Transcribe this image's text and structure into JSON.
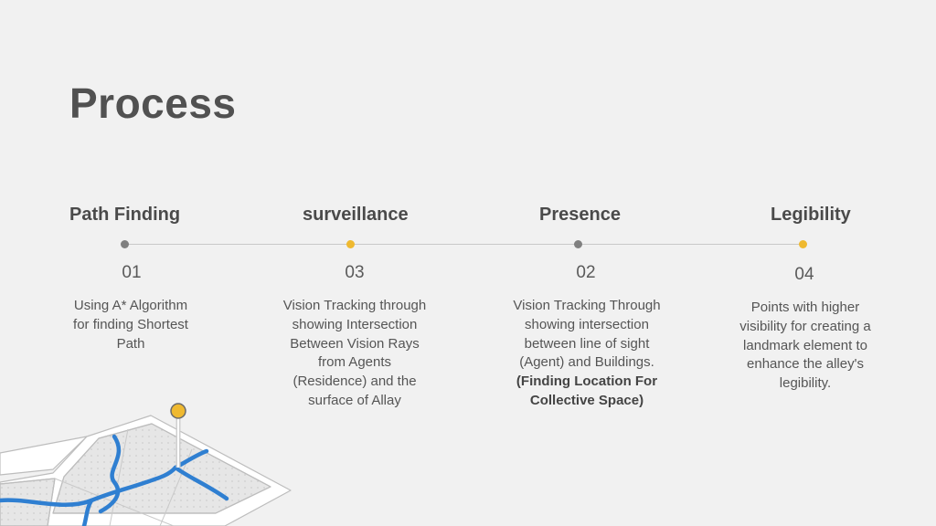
{
  "page": {
    "title": "Process"
  },
  "steps": [
    {
      "heading": "Path Finding",
      "number": "01",
      "dot_color": "#808080",
      "desc": [
        "Using A* Algorithm",
        "for finding Shortest",
        "Path"
      ]
    },
    {
      "heading": "surveillance",
      "number": "03",
      "dot_color": "#efb930",
      "desc": [
        "Vision Tracking through",
        "showing Intersection",
        "Between Vision Rays",
        "from Agents",
        "(Residence) and the",
        "surface of Allay"
      ]
    },
    {
      "heading": "Presence",
      "number": "02",
      "dot_color": "#808080",
      "desc": [
        "Vision Tracking Through",
        "showing intersection",
        "between line of sight",
        "(Agent) and Buildings."
      ],
      "desc_bold": [
        "(Finding Location For",
        "Collective Space)"
      ]
    },
    {
      "heading": "Legibility",
      "number": "04",
      "dot_color": "#efb930",
      "desc": [
        "Points with higher",
        "visibility for creating a",
        "landmark element to",
        "enhance the alley's",
        "legibility."
      ]
    }
  ],
  "colors": {
    "accent": "#efb930",
    "river": "#2f7fd1",
    "text": "#555555",
    "background": "#f1f1f1"
  },
  "illustration": {
    "icon": "map-pin-icon"
  }
}
